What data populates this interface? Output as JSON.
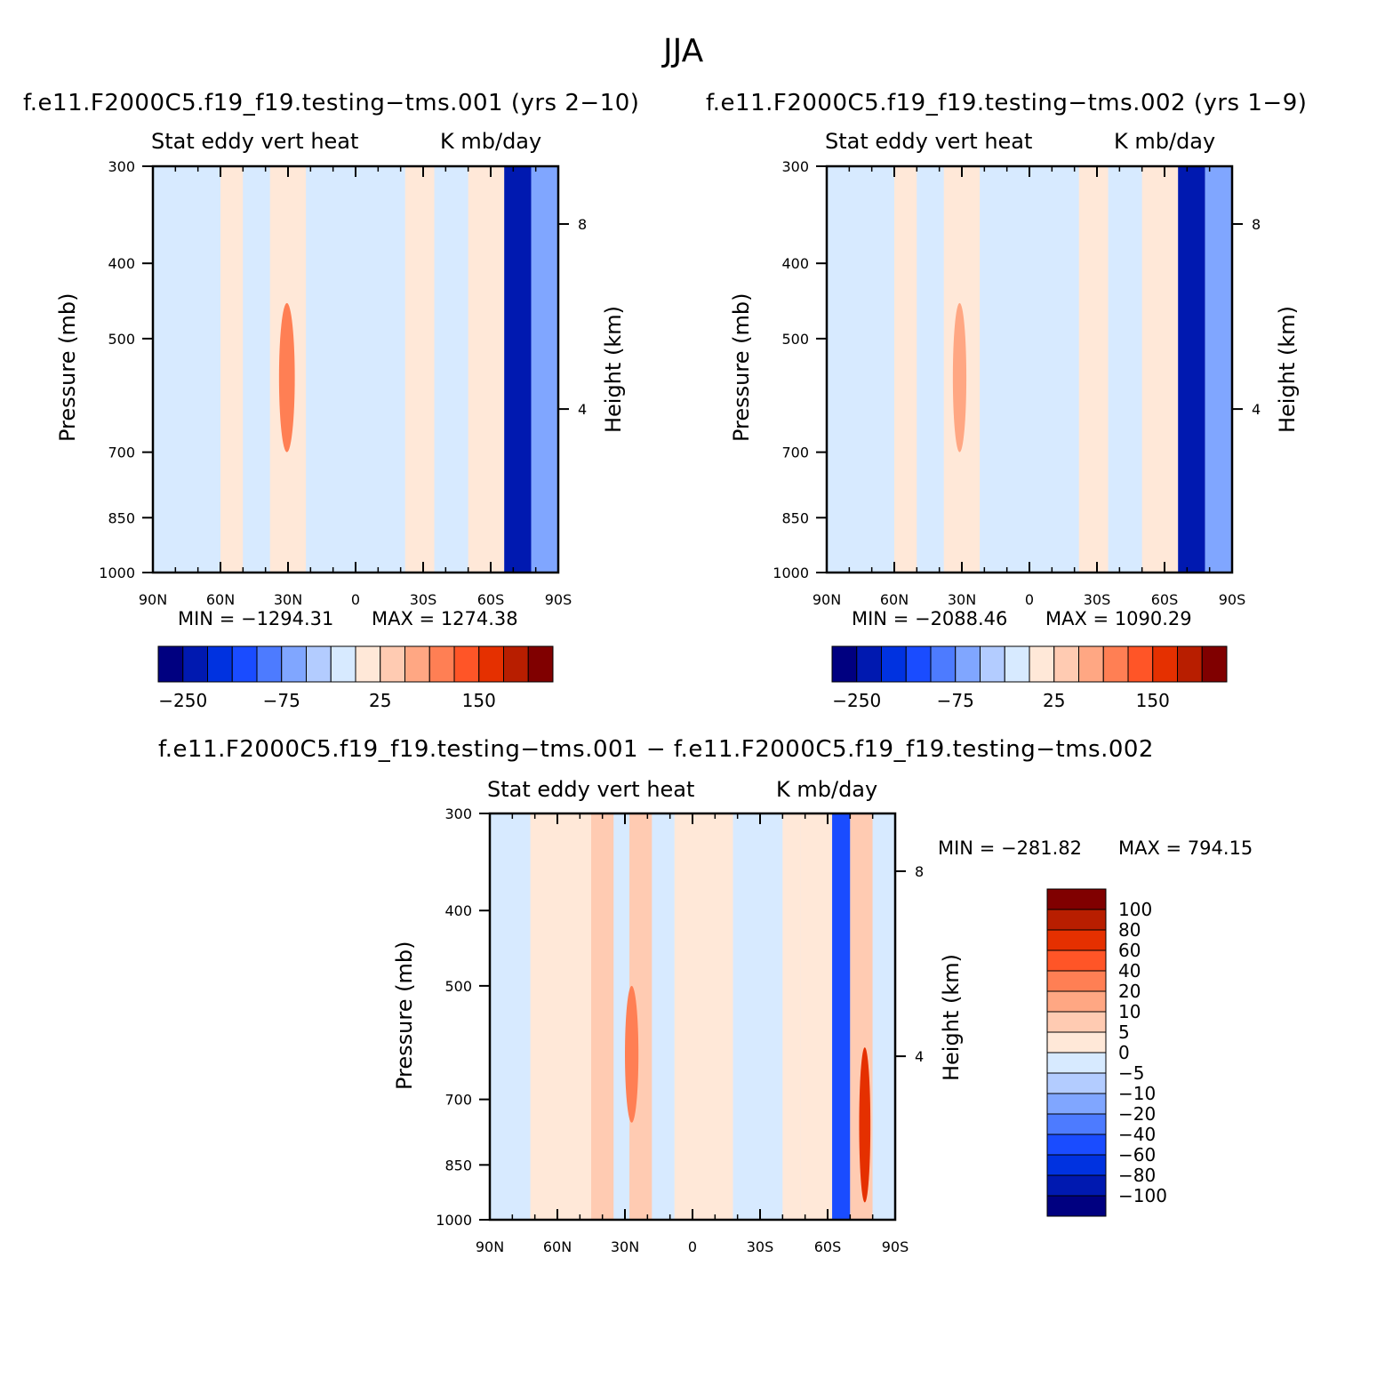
{
  "figure": {
    "title": "JJA"
  },
  "colors": {
    "palette": [
      "#000080",
      "#0019b0",
      "#0032e0",
      "#1a4cff",
      "#4d7bff",
      "#80a6ff",
      "#b3ccff",
      "#d7eaff",
      "#ffe8d8",
      "#ffcbb2",
      "#ffa783",
      "#ff7f54",
      "#ff5527",
      "#e53000",
      "#b81e00",
      "#800000"
    ],
    "diff_palette": [
      "#000080",
      "#0019b0",
      "#0032e0",
      "#1a4cff",
      "#4d7bff",
      "#80a6ff",
      "#b3ccff",
      "#d7eaff",
      "#ffe8d8",
      "#ffcbb2",
      "#ffa783",
      "#ff7f54",
      "#ff5527",
      "#e53000",
      "#b81e00",
      "#800000"
    ]
  },
  "chart_data": [
    {
      "type": "heatmap",
      "id": "p1",
      "case_title": "f.e11.F2000C5.f19_f19.testing−tms.001 (yrs 2−10)",
      "left_label": "Stat eddy vert heat",
      "right_label": "K mb/day",
      "ylabel": "Pressure (mb)",
      "ylabel_right": "Height (km)",
      "xlabel": "",
      "x_ticks": [
        "90N",
        "60N",
        "30N",
        "0",
        "30S",
        "60S",
        "90S"
      ],
      "y_ticks": [
        "300",
        "400",
        "500",
        "700",
        "850",
        "1000"
      ],
      "y_ticks_right": [
        "8",
        "4"
      ],
      "ylim": [
        1000,
        300
      ],
      "xlim": [
        90,
        -90
      ],
      "min_text": "MIN = −1294.31",
      "max_text": "MAX = 1274.38",
      "colorbar_labels": [
        "−250",
        "−75",
        "25",
        "150"
      ],
      "bands": [
        {
          "lat": [
            90,
            60
          ],
          "class": 7
        },
        {
          "lat": [
            60,
            50
          ],
          "class": 8
        },
        {
          "lat": [
            50,
            38
          ],
          "class": 7
        },
        {
          "lat": [
            38,
            22
          ],
          "class": 8,
          "core": {
            "lat": [
              34,
              27
            ],
            "p": [
              450,
              700
            ],
            "class": 11
          }
        },
        {
          "lat": [
            22,
            -22
          ],
          "class": 7
        },
        {
          "lat": [
            -22,
            -35
          ],
          "class": 8
        },
        {
          "lat": [
            -35,
            -50
          ],
          "class": 7
        },
        {
          "lat": [
            -50,
            -66
          ],
          "class": 8
        },
        {
          "lat": [
            -66,
            -78
          ],
          "class": 1
        },
        {
          "lat": [
            -78,
            -90
          ],
          "class": 5
        }
      ]
    },
    {
      "type": "heatmap",
      "id": "p2",
      "case_title": "f.e11.F2000C5.f19_f19.testing−tms.002 (yrs 1−9)",
      "left_label": "Stat eddy vert heat",
      "right_label": "K mb/day",
      "ylabel": "Pressure (mb)",
      "ylabel_right": "Height (km)",
      "xlabel": "",
      "x_ticks": [
        "90N",
        "60N",
        "30N",
        "0",
        "30S",
        "60S",
        "90S"
      ],
      "y_ticks": [
        "300",
        "400",
        "500",
        "700",
        "850",
        "1000"
      ],
      "y_ticks_right": [
        "8",
        "4"
      ],
      "ylim": [
        1000,
        300
      ],
      "xlim": [
        90,
        -90
      ],
      "min_text": "MIN = −2088.46",
      "max_text": "MAX = 1090.29",
      "colorbar_labels": [
        "−250",
        "−75",
        "25",
        "150"
      ],
      "bands": [
        {
          "lat": [
            90,
            60
          ],
          "class": 7
        },
        {
          "lat": [
            60,
            50
          ],
          "class": 8
        },
        {
          "lat": [
            50,
            38
          ],
          "class": 7
        },
        {
          "lat": [
            38,
            22
          ],
          "class": 8,
          "core": {
            "lat": [
              34,
              28
            ],
            "p": [
              450,
              700
            ],
            "class": 10
          }
        },
        {
          "lat": [
            22,
            -22
          ],
          "class": 7
        },
        {
          "lat": [
            -22,
            -35
          ],
          "class": 8
        },
        {
          "lat": [
            -35,
            -50
          ],
          "class": 7
        },
        {
          "lat": [
            -50,
            -66
          ],
          "class": 8
        },
        {
          "lat": [
            -66,
            -78
          ],
          "class": 1
        },
        {
          "lat": [
            -78,
            -90
          ],
          "class": 5
        }
      ]
    },
    {
      "type": "heatmap",
      "id": "p3",
      "case_title": "f.e11.F2000C5.f19_f19.testing−tms.001 − f.e11.F2000C5.f19_f19.testing−tms.002",
      "left_label": "Stat eddy vert heat",
      "right_label": "K mb/day",
      "ylabel": "Pressure (mb)",
      "ylabel_right": "Height (km)",
      "xlabel": "",
      "x_ticks": [
        "90N",
        "60N",
        "30N",
        "0",
        "30S",
        "60S",
        "90S"
      ],
      "y_ticks": [
        "300",
        "400",
        "500",
        "700",
        "850",
        "1000"
      ],
      "y_ticks_right": [
        "8",
        "4"
      ],
      "ylim": [
        1000,
        300
      ],
      "xlim": [
        90,
        -90
      ],
      "min_text": "MIN = −281.82",
      "max_text": "MAX = 794.15",
      "colorbar_labels": [
        "100",
        "80",
        "60",
        "40",
        "20",
        "10",
        "5",
        "0",
        "−5",
        "−10",
        "−20",
        "−40",
        "−60",
        "−80",
        "−100"
      ],
      "bands": [
        {
          "lat": [
            90,
            72
          ],
          "class": 7
        },
        {
          "lat": [
            72,
            45
          ],
          "class": 8
        },
        {
          "lat": [
            45,
            35
          ],
          "class": 9
        },
        {
          "lat": [
            35,
            28
          ],
          "class": 7
        },
        {
          "lat": [
            28,
            18
          ],
          "class": 9,
          "core": {
            "lat": [
              30,
              24
            ],
            "p": [
              500,
              750
            ],
            "class": 11
          }
        },
        {
          "lat": [
            18,
            8
          ],
          "class": 7
        },
        {
          "lat": [
            8,
            -18
          ],
          "class": 8
        },
        {
          "lat": [
            -18,
            -40
          ],
          "class": 7
        },
        {
          "lat": [
            -40,
            -48
          ],
          "class": 8
        },
        {
          "lat": [
            -48,
            -62
          ],
          "class": 8
        },
        {
          "lat": [
            -62,
            -70
          ],
          "class": 3
        },
        {
          "lat": [
            -70,
            -80
          ],
          "class": 9,
          "core": {
            "lat": [
              -74,
              -79
            ],
            "p": [
              600,
              950
            ],
            "class": 13
          }
        },
        {
          "lat": [
            -80,
            -90
          ],
          "class": 7
        }
      ]
    }
  ]
}
